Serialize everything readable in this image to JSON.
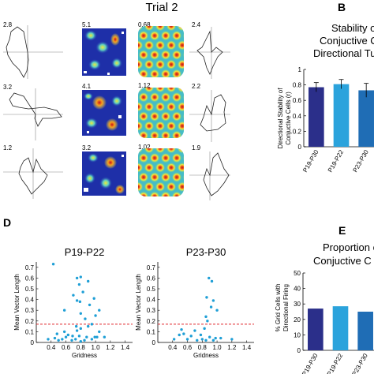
{
  "figure": {
    "trial_title": "Trial 2",
    "panel_letters": {
      "b": "B",
      "d": "D",
      "e": "E"
    }
  },
  "rate_maps": {
    "rows": [
      {
        "left_polar_value": "2.8",
        "rate_map_value": "5.1",
        "autocorr_value": "0.68",
        "right_polar_value": "2.4"
      },
      {
        "left_polar_value": "3.2",
        "rate_map_value": "4.1",
        "autocorr_value": "1.12",
        "right_polar_value": "2.2"
      },
      {
        "left_polar_value": "1.2",
        "rate_map_value": "3.2",
        "autocorr_value": "1.02",
        "right_polar_value": "1.9"
      }
    ]
  },
  "panel_b": {
    "title_lines": [
      "Stability o",
      "Conjuctive C",
      "Directional Tu"
    ],
    "ylabel_lines": [
      "Directional Stability of",
      "Conjuctive Cells (r)"
    ]
  },
  "panel_e": {
    "title_lines": [
      "Proportion o",
      "Conjuctive C"
    ],
    "ylabel_lines": [
      "% Grid Cells with",
      "Directional Firing"
    ]
  },
  "chart_data": [
    {
      "type": "bar",
      "panel": "B",
      "categories": [
        "P19-P30",
        "P19-P22",
        "P23-P30"
      ],
      "values": [
        0.77,
        0.81,
        0.73
      ],
      "errors": [
        0.06,
        0.06,
        0.09
      ],
      "colors": [
        "#2b2f8a",
        "#2ba3dc",
        "#1f6db5"
      ],
      "ylim": [
        0,
        1
      ],
      "yticks": [
        "0",
        "0.2",
        "0.4",
        "0.6",
        "0.8",
        "1"
      ]
    },
    {
      "type": "scatter",
      "panel": "D-left",
      "title": "P19-P22",
      "xlabel": "Gridness",
      "ylabel": "Mean Vector Length",
      "xlim": [
        0.2,
        1.5
      ],
      "ylim": [
        0,
        0.75
      ],
      "xticks": [
        "0.4",
        "0.6",
        "0.8",
        "1.0",
        "1.2",
        "1.4"
      ],
      "yticks": [
        "0",
        "0.1",
        "0.2",
        "0.3",
        "0.4",
        "0.5",
        "0.6",
        "0.7"
      ],
      "threshold": 0.17,
      "point_color": "#1f9fd6",
      "threshold_color": "#e0262a",
      "points": [
        [
          0.43,
          0.73
        ],
        [
          0.75,
          0.6
        ],
        [
          0.8,
          0.61
        ],
        [
          0.78,
          0.54
        ],
        [
          0.9,
          0.57
        ],
        [
          0.83,
          0.47
        ],
        [
          0.7,
          0.44
        ],
        [
          0.75,
          0.39
        ],
        [
          0.79,
          0.38
        ],
        [
          0.92,
          0.35
        ],
        [
          0.98,
          0.41
        ],
        [
          0.58,
          0.3
        ],
        [
          0.8,
          0.27
        ],
        [
          1.0,
          0.25
        ],
        [
          0.86,
          0.22
        ],
        [
          1.05,
          0.3
        ],
        [
          0.95,
          0.17
        ],
        [
          0.9,
          0.15
        ],
        [
          0.8,
          0.13
        ],
        [
          0.75,
          0.11
        ],
        [
          0.58,
          0.1
        ],
        [
          0.48,
          0.08
        ],
        [
          0.63,
          0.07
        ],
        [
          0.69,
          0.06
        ],
        [
          0.78,
          0.06
        ],
        [
          0.88,
          0.05
        ],
        [
          0.99,
          0.05
        ],
        [
          0.45,
          0.04
        ],
        [
          0.36,
          0.03
        ],
        [
          0.55,
          0.03
        ],
        [
          0.73,
          0.03
        ],
        [
          0.85,
          0.02
        ],
        [
          0.95,
          0.03
        ],
        [
          1.02,
          0.05
        ],
        [
          1.12,
          0.05
        ],
        [
          0.68,
          0.02
        ],
        [
          0.5,
          0.02
        ],
        [
          0.8,
          0.01
        ],
        [
          0.6,
          0.05
        ],
        [
          1.05,
          0.1
        ],
        [
          0.74,
          0.15
        ]
      ]
    },
    {
      "type": "scatter",
      "panel": "D-right",
      "title": "P23-P30",
      "xlabel": "Gridness",
      "ylabel": "Mean Vector Length",
      "xlim": [
        0.2,
        1.5
      ],
      "ylim": [
        0,
        0.75
      ],
      "xticks": [
        "0.4",
        "0.6",
        "0.8",
        "1.0",
        "1.2",
        "1.4"
      ],
      "yticks": [
        "0",
        "0.1",
        "0.2",
        "0.3",
        "0.4",
        "0.5",
        "0.6",
        "0.7"
      ],
      "threshold": 0.17,
      "point_color": "#1f9fd6",
      "threshold_color": "#e0262a",
      "points": [
        [
          0.89,
          0.6
        ],
        [
          0.93,
          0.57
        ],
        [
          0.86,
          0.42
        ],
        [
          0.95,
          0.39
        ],
        [
          0.92,
          0.33
        ],
        [
          0.85,
          0.24
        ],
        [
          1.0,
          0.3
        ],
        [
          0.87,
          0.2
        ],
        [
          0.83,
          0.13
        ],
        [
          0.7,
          0.11
        ],
        [
          0.55,
          0.08
        ],
        [
          0.49,
          0.07
        ],
        [
          0.65,
          0.06
        ],
        [
          0.78,
          0.07
        ],
        [
          0.9,
          0.05
        ],
        [
          0.98,
          0.04
        ],
        [
          0.42,
          0.03
        ],
        [
          0.6,
          0.03
        ],
        [
          0.73,
          0.02
        ],
        [
          0.85,
          0.02
        ],
        [
          0.95,
          0.02
        ],
        [
          1.05,
          0.04
        ],
        [
          1.2,
          0.03
        ],
        [
          0.52,
          0.12
        ],
        [
          0.8,
          0.03
        ]
      ]
    },
    {
      "type": "bar",
      "panel": "E",
      "categories": [
        "P19-P30",
        "P19-P22",
        "P23-P30"
      ],
      "values": [
        27,
        28.5,
        25
      ],
      "colors": [
        "#2b2f8a",
        "#2ba3dc",
        "#1f6db5"
      ],
      "ylim": [
        0,
        50
      ],
      "yticks": [
        "0",
        "10",
        "20",
        "30",
        "40",
        "50"
      ]
    }
  ]
}
